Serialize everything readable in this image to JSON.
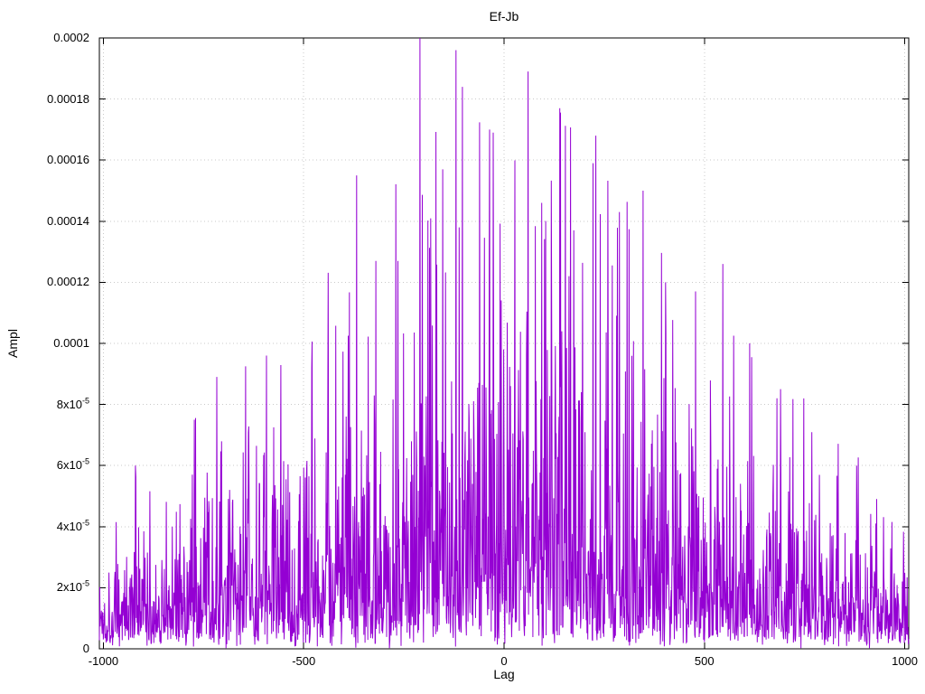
{
  "page": {
    "background": "#ffffff"
  },
  "chart_data": {
    "type": "line",
    "title": "Ef-Jb",
    "xlabel": "Lag",
    "ylabel": "Ampl",
    "xlim": [
      -1010,
      1010
    ],
    "ylim": [
      0,
      0.0002
    ],
    "grid": true,
    "legend": "none",
    "line_color": "#9400D3",
    "background": "#ffffff",
    "x_ticks": [
      {
        "v": -1000,
        "label": "-1000"
      },
      {
        "v": -500,
        "label": "-500"
      },
      {
        "v": 0,
        "label": "0"
      },
      {
        "v": 500,
        "label": "500"
      },
      {
        "v": 1000,
        "label": "1000"
      }
    ],
    "y_ticks": [
      {
        "v": 0,
        "base": "0",
        "exp": ""
      },
      {
        "v": 2e-05,
        "base": "2x10",
        "exp": "-5"
      },
      {
        "v": 4e-05,
        "base": "4x10",
        "exp": "-5"
      },
      {
        "v": 6e-05,
        "base": "6x10",
        "exp": "-5"
      },
      {
        "v": 8e-05,
        "base": "8x10",
        "exp": "-5"
      },
      {
        "v": 0.0001,
        "base": "0.0001",
        "exp": ""
      },
      {
        "v": 0.00012,
        "base": "0.00012",
        "exp": ""
      },
      {
        "v": 0.00014,
        "base": "0.00014",
        "exp": ""
      },
      {
        "v": 0.00016,
        "base": "0.00016",
        "exp": ""
      },
      {
        "v": 0.00018,
        "base": "0.00018",
        "exp": ""
      },
      {
        "v": 0.0002,
        "base": "0.0002",
        "exp": ""
      }
    ],
    "series": [
      {
        "name": "Ef-Jb",
        "x_start": -1010,
        "x_end": 1010,
        "x_step": 1,
        "noise": {
          "model": "exponential",
          "mean_fraction": 0.22,
          "seed": 1337
        },
        "envelope": {
          "shape": "peaked-at-zero",
          "edge_max": 5e-05,
          "center_max": 0.0002,
          "power": 1.3
        }
      }
    ],
    "notable_peaks": [
      [
        -920,
        6e-05
      ],
      [
        -773,
        7.5e-05
      ],
      [
        -717,
        8.9e-05
      ],
      [
        -593,
        9.6e-05
      ],
      [
        -480,
        9.2e-05
      ],
      [
        -368,
        0.000155
      ],
      [
        -320,
        0.000127
      ],
      [
        -265,
        0.000127
      ],
      [
        -210,
        0.0002
      ],
      [
        -153,
        0.000157
      ],
      [
        -120,
        0.000196
      ],
      [
        -104,
        0.000184
      ],
      [
        -36,
        0.00017
      ],
      [
        -27,
        0.000169
      ],
      [
        60,
        0.000189
      ],
      [
        94,
        0.000146
      ],
      [
        139,
        0.000177
      ],
      [
        162,
        0.000122
      ],
      [
        222,
        0.000159
      ],
      [
        229,
        0.000168
      ],
      [
        288,
        0.000143
      ],
      [
        347,
        0.00015
      ],
      [
        403,
        0.00012
      ],
      [
        478,
        0.000117
      ],
      [
        546,
        0.000126
      ],
      [
        613,
        0.0001
      ],
      [
        748,
        8.2e-05
      ],
      [
        880,
        6e-05
      ]
    ]
  }
}
